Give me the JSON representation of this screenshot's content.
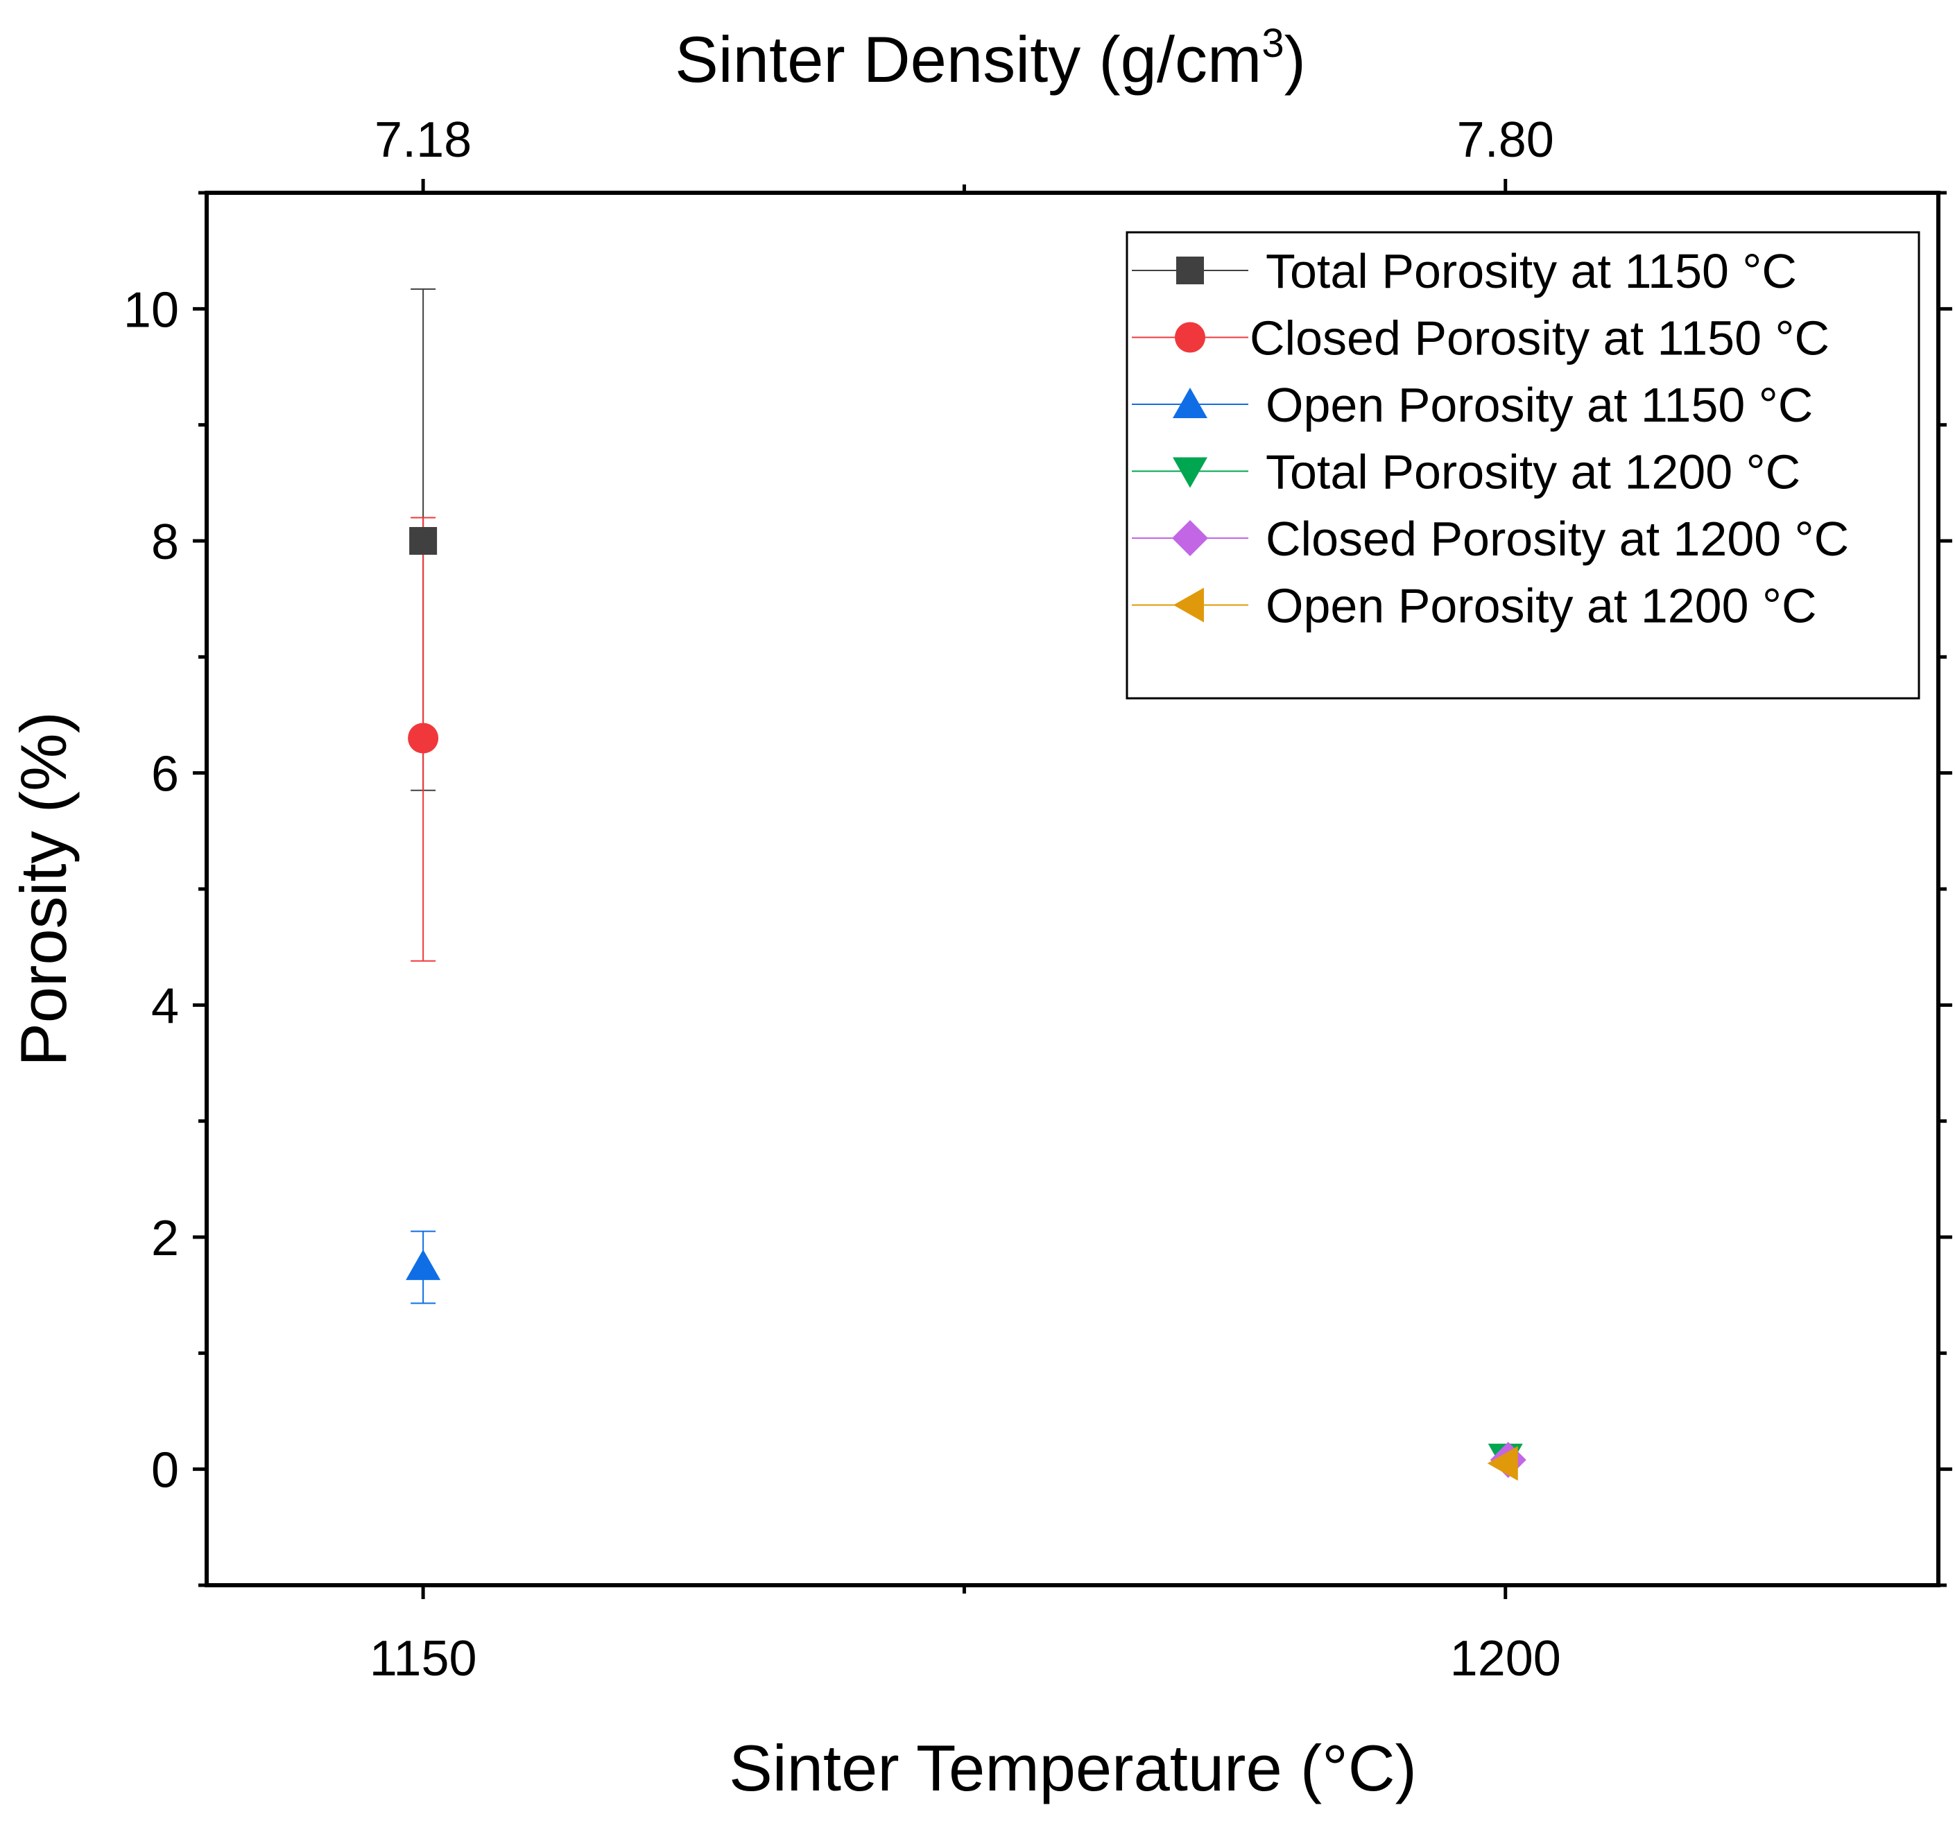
{
  "chart_data": {
    "type": "scatter",
    "title": "",
    "xlabel": "Sinter Temperature (°C)",
    "ylabel": "Porosity (%)",
    "top_axis": {
      "label_prefix": "Sinter Density (g/cm",
      "label_superscript": "3",
      "label_suffix": ")",
      "tick_labels": [
        "7.18",
        "7.80"
      ],
      "tick_positions": [
        1150,
        1200
      ]
    },
    "xlim": [
      1140,
      1220
    ],
    "ylim": [
      -1,
      11
    ],
    "x_ticks": [
      1150,
      1200
    ],
    "x_tick_labels": [
      "1150",
      "1200"
    ],
    "y_ticks": [
      0,
      2,
      4,
      6,
      8,
      10
    ],
    "y_tick_labels": [
      "0",
      "2",
      "4",
      "6",
      "8",
      "10"
    ],
    "grid": false,
    "legend_position": "top-right",
    "series": [
      {
        "name": "Total Porosity at 1150 °C",
        "color": "#404040",
        "marker": "square",
        "x": 1150,
        "y": 8.0,
        "err_low": 5.85,
        "err_high": 10.17
      },
      {
        "name": "Closed Porosity at 1150 °C",
        "color": "#f0383c",
        "marker": "circle",
        "x": 1150,
        "y": 6.3,
        "err_low": 4.38,
        "err_high": 8.2
      },
      {
        "name": "Open Porosity at 1150 °C",
        "color": "#0f6ee6",
        "marker": "triangle-up",
        "x": 1150,
        "y": 1.75,
        "err_low": 1.43,
        "err_high": 2.05
      },
      {
        "name": "Total Porosity at 1200 °C",
        "color": "#00a650",
        "marker": "triangle-down",
        "x": 1200,
        "y": 0.1,
        "err_low": null,
        "err_high": null
      },
      {
        "name": "Closed Porosity at 1200 °C",
        "color": "#c266e6",
        "marker": "diamond",
        "x": 1200,
        "y": 0.08,
        "err_low": null,
        "err_high": null
      },
      {
        "name": "Open Porosity at 1200 °C",
        "color": "#e0990a",
        "marker": "triangle-left",
        "x": 1200,
        "y": 0.05,
        "err_low": null,
        "err_high": null
      }
    ]
  }
}
